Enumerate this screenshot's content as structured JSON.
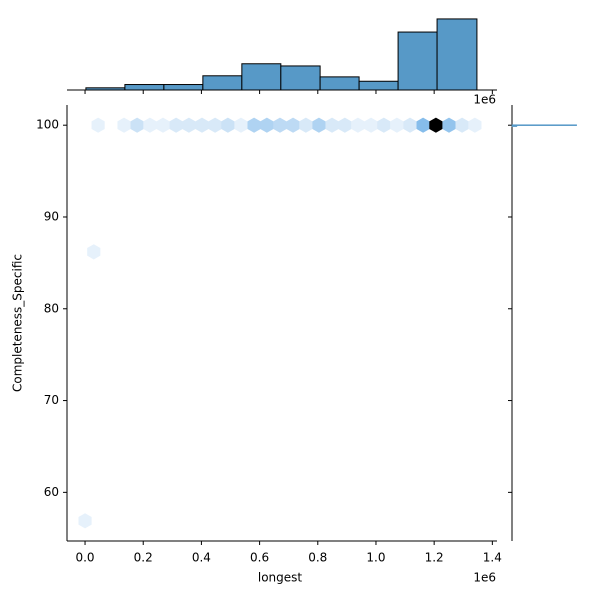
{
  "chart_data": {
    "type": "hexbin",
    "x_label": "longest",
    "y_label": "Completeness_Specific",
    "x_offset_label": "1e6",
    "xlim": [
      -0.062,
      1.416
    ],
    "ylim": [
      54.7,
      102.2
    ],
    "xticks": [
      {
        "value": 0,
        "label": "0.0"
      },
      0.2,
      0.4,
      0.6,
      0.8,
      {
        "value": 1,
        "label": "1.0"
      },
      1.2,
      1.4
    ],
    "yticks": [
      60,
      70,
      80,
      90,
      100
    ],
    "cmap": [
      "#f4f8fd",
      "#6aaee6",
      "#000000"
    ],
    "hexes": {
      "x": [
        0.045,
        0.134,
        0.179,
        0.223,
        0.268,
        0.313,
        0.357,
        0.402,
        0.447,
        0.491,
        0.536,
        0.581,
        0.625,
        0.67,
        0.715,
        0.759,
        0.804,
        0.849,
        0.893,
        0.938,
        0.983,
        1.027,
        1.072,
        1.117,
        1.162,
        1.206,
        1.251,
        1.296,
        1.34,
        0.03,
        0.0
      ],
      "y": [
        100,
        100,
        100,
        100,
        100,
        100,
        100,
        100,
        100,
        100,
        100,
        100,
        100,
        100,
        100,
        100,
        100,
        100,
        100,
        100,
        100,
        100,
        100,
        100,
        100,
        100,
        100,
        100,
        100,
        86.2,
        56.9
      ],
      "counts": [
        1,
        1,
        3,
        1,
        1,
        2,
        2,
        2,
        2,
        3,
        1,
        5,
        5,
        4,
        4,
        2,
        5,
        2,
        2,
        1,
        1,
        2,
        1,
        2,
        8,
        20,
        7,
        2,
        1,
        1,
        1
      ]
    },
    "x_hist": {
      "color": "#5799c7",
      "bins": [
        0.003,
        0.137,
        0.271,
        0.405,
        0.539,
        0.673,
        0.808,
        0.942,
        1.076,
        1.21,
        1.347
      ],
      "counts": [
        2,
        5,
        5,
        13,
        24,
        22,
        12,
        8,
        53,
        65
      ],
      "ylim": [
        0,
        75
      ]
    },
    "y_hist": {
      "color": "#5799c7",
      "bins": [
        99.85,
        99.95,
        100.05
      ],
      "counts": [
        9,
        120
      ],
      "xlim": [
        0,
        130
      ]
    }
  }
}
